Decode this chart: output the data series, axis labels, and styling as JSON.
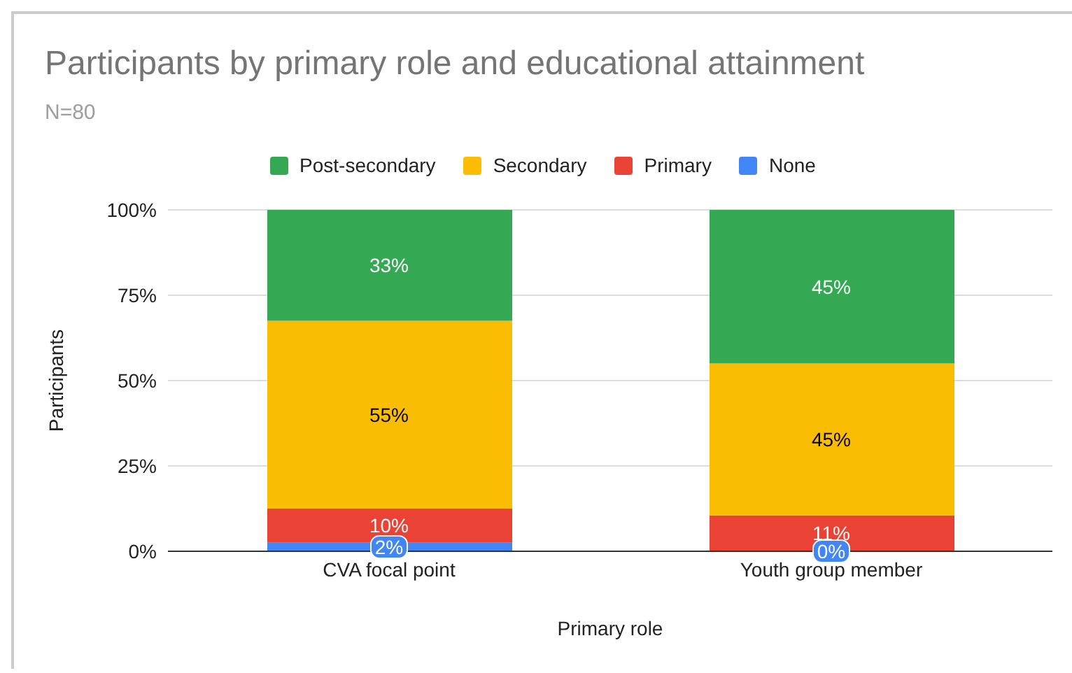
{
  "chart_data": {
    "type": "bar",
    "stacked": true,
    "title": "Participants by primary role and educational attainment",
    "subtitle": "N=80",
    "xlabel": "Primary role",
    "ylabel": "Participants",
    "categories": [
      "CVA focal point",
      "Youth group member"
    ],
    "series": [
      {
        "name": "None",
        "color": "#4285f4",
        "values": [
          2.5,
          0
        ],
        "value_labels": [
          "2%",
          "0%"
        ]
      },
      {
        "name": "Primary",
        "color": "#ea4335",
        "values": [
          10,
          10.5
        ],
        "value_labels": [
          "10%",
          "11%"
        ]
      },
      {
        "name": "Secondary",
        "color": "#fbbc04",
        "values": [
          55,
          44.5
        ],
        "value_labels": [
          "55%",
          "45%"
        ]
      },
      {
        "name": "Post-secondary",
        "color": "#34a853",
        "values": [
          32.5,
          45
        ],
        "value_labels": [
          "33%",
          "45%"
        ]
      }
    ],
    "ylim": [
      0,
      100
    ],
    "yticks": [
      {
        "value": 0,
        "label": "0%"
      },
      {
        "value": 25,
        "label": "25%"
      },
      {
        "value": 50,
        "label": "50%"
      },
      {
        "value": 75,
        "label": "75%"
      },
      {
        "value": 100,
        "label": "100%"
      }
    ],
    "grid": "y",
    "legend": "top"
  }
}
